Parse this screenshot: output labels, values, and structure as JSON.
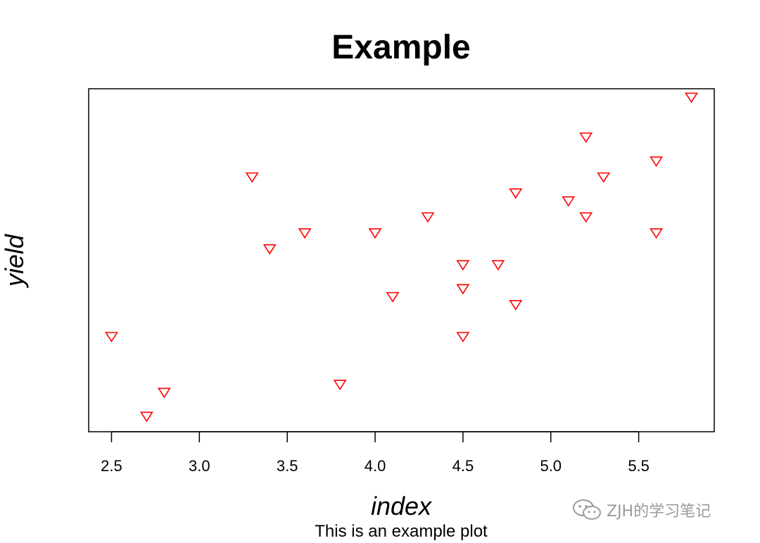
{
  "chart_data": {
    "type": "scatter",
    "title": "Example",
    "subtitle": "This is an example plot",
    "xlabel": "index",
    "ylabel": "yield",
    "xlim": [
      2.37,
      5.93
    ],
    "ylim": [
      0.3,
      4.6
    ],
    "xticks": [
      "2.5",
      "3.0",
      "3.5",
      "4.0",
      "4.5",
      "5.0",
      "5.5"
    ],
    "y_axis_ticks_shown": false,
    "grid": false,
    "marker": "down-triangle-open",
    "color": "#ff0000",
    "points": [
      {
        "x": 2.5,
        "y": 1.5
      },
      {
        "x": 2.7,
        "y": 0.5
      },
      {
        "x": 2.8,
        "y": 0.8
      },
      {
        "x": 3.3,
        "y": 3.5
      },
      {
        "x": 3.4,
        "y": 2.6
      },
      {
        "x": 3.6,
        "y": 2.8
      },
      {
        "x": 3.8,
        "y": 0.9
      },
      {
        "x": 4.0,
        "y": 2.8
      },
      {
        "x": 4.1,
        "y": 2.0
      },
      {
        "x": 4.3,
        "y": 3.0
      },
      {
        "x": 4.5,
        "y": 2.4
      },
      {
        "x": 4.5,
        "y": 2.1
      },
      {
        "x": 4.5,
        "y": 1.5
      },
      {
        "x": 4.7,
        "y": 2.4
      },
      {
        "x": 4.8,
        "y": 3.3
      },
      {
        "x": 4.8,
        "y": 1.9
      },
      {
        "x": 5.1,
        "y": 3.2
      },
      {
        "x": 5.2,
        "y": 4.0
      },
      {
        "x": 5.2,
        "y": 3.0
      },
      {
        "x": 5.3,
        "y": 3.5
      },
      {
        "x": 5.6,
        "y": 3.7
      },
      {
        "x": 5.6,
        "y": 2.8
      },
      {
        "x": 5.8,
        "y": 4.5
      }
    ]
  },
  "watermark": {
    "text": "ZJH的学习笔记",
    "icon": "wechat-icon"
  }
}
